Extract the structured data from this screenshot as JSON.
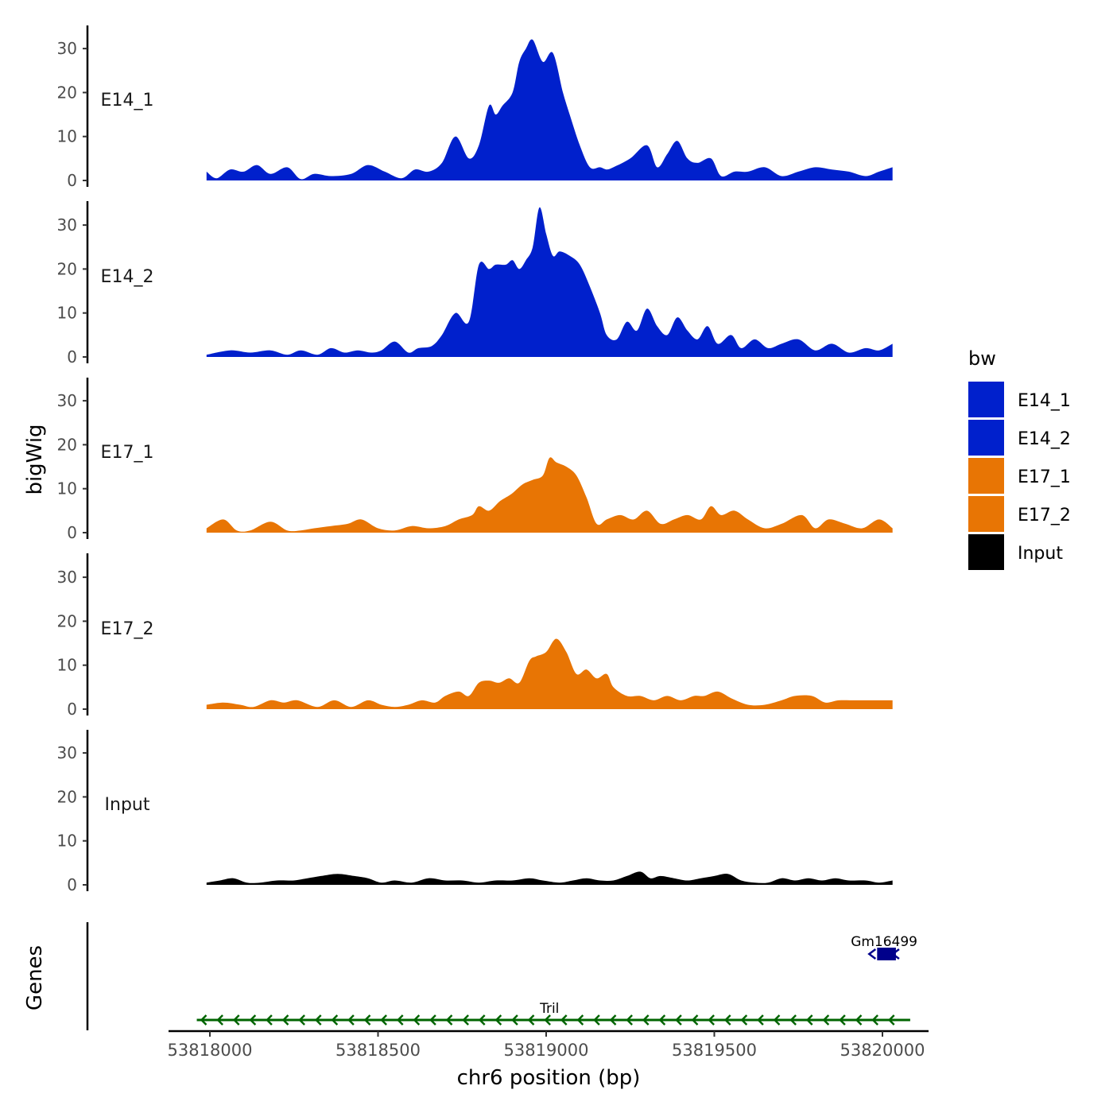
{
  "chart_data": {
    "type": "area",
    "title": "",
    "xlabel": "chr6 position (bp)",
    "ylabel": "bigWig",
    "genes_label": "Genes",
    "xlim": [
      53817880,
      53820150
    ],
    "ylim": [
      0,
      35
    ],
    "x_ticks": [
      53818000,
      53818500,
      53819000,
      53819500,
      53820000
    ],
    "y_ticks": [
      0,
      10,
      20,
      30
    ],
    "legend": {
      "title": "bw",
      "position": "right",
      "entries": [
        {
          "name": "E14_1",
          "color": "#0020CC"
        },
        {
          "name": "E14_2",
          "color": "#0020CC"
        },
        {
          "name": "E17_1",
          "color": "#E87504"
        },
        {
          "name": "E17_2",
          "color": "#E87504"
        },
        {
          "name": "Input",
          "color": "#000000"
        }
      ]
    },
    "series": [
      {
        "name": "E14_1",
        "color": "#0020CC",
        "x": [
          53817990,
          53818020,
          53818060,
          53818100,
          53818140,
          53818180,
          53818230,
          53818270,
          53818310,
          53818360,
          53818420,
          53818470,
          53818520,
          53818570,
          53818610,
          53818650,
          53818690,
          53818730,
          53818770,
          53818800,
          53818830,
          53818850,
          53818870,
          53818900,
          53818920,
          53818940,
          53818960,
          53818990,
          53819020,
          53819050,
          53819070,
          53819100,
          53819130,
          53819160,
          53819180,
          53819200,
          53819250,
          53819300,
          53819330,
          53819360,
          53819390,
          53819420,
          53819450,
          53819490,
          53819520,
          53819560,
          53819600,
          53819650,
          53819700,
          53819750,
          53819800,
          53819850,
          53819900,
          53819950,
          53819990,
          53820030
        ],
        "y": [
          2,
          0.5,
          2.5,
          2,
          3.5,
          1.5,
          3,
          0.3,
          1.5,
          1,
          1.5,
          3.5,
          2,
          0.5,
          2.5,
          2,
          4,
          10,
          5,
          8,
          17,
          15,
          17,
          20,
          27,
          30,
          32,
          27,
          29,
          20,
          15,
          8,
          3,
          3,
          2.5,
          3,
          5,
          8,
          3,
          6,
          9,
          5,
          4,
          5,
          1,
          2,
          2,
          3,
          1,
          2,
          3,
          2.5,
          2,
          1,
          2,
          3
        ]
      },
      {
        "name": "E14_2",
        "color": "#0020CC",
        "x": [
          53817990,
          53818060,
          53818120,
          53818180,
          53818230,
          53818270,
          53818320,
          53818360,
          53818400,
          53818440,
          53818480,
          53818510,
          53818550,
          53818590,
          53818620,
          53818660,
          53818690,
          53818730,
          53818770,
          53818800,
          53818830,
          53818850,
          53818880,
          53818900,
          53818920,
          53818940,
          53818960,
          53818980,
          53819000,
          53819020,
          53819040,
          53819070,
          53819100,
          53819130,
          53819160,
          53819180,
          53819210,
          53819240,
          53819270,
          53819300,
          53819330,
          53819360,
          53819390,
          53819420,
          53819450,
          53819480,
          53819510,
          53819550,
          53819580,
          53819620,
          53819660,
          53819700,
          53819750,
          53819800,
          53819850,
          53819900,
          53819950,
          53819990,
          53820030
        ],
        "y": [
          0.5,
          1.5,
          1,
          1.5,
          0.5,
          1.5,
          0.5,
          2,
          1,
          1.5,
          1,
          1.5,
          3.5,
          1,
          2,
          2.5,
          5,
          10,
          8,
          21,
          20,
          21,
          21,
          22,
          20,
          22,
          25,
          34,
          28,
          23,
          24,
          23,
          21,
          16,
          10,
          5,
          4,
          8,
          6,
          11,
          7,
          5,
          9,
          6,
          4,
          7,
          3,
          5,
          2,
          4,
          2,
          3,
          4,
          1.5,
          3,
          1,
          2,
          1.5,
          3
        ]
      },
      {
        "name": "E17_1",
        "color": "#E87504",
        "x": [
          53817990,
          53818040,
          53818080,
          53818120,
          53818180,
          53818230,
          53818270,
          53818310,
          53818360,
          53818410,
          53818450,
          53818500,
          53818550,
          53818600,
          53818650,
          53818700,
          53818740,
          53818780,
          53818800,
          53818830,
          53818860,
          53818880,
          53818900,
          53818930,
          53818960,
          53818990,
          53819010,
          53819030,
          53819060,
          53819090,
          53819120,
          53819150,
          53819180,
          53819220,
          53819260,
          53819300,
          53819340,
          53819380,
          53819420,
          53819460,
          53819490,
          53819520,
          53819560,
          53819600,
          53819650,
          53819700,
          53819760,
          53819800,
          53819840,
          53819890,
          53819940,
          53819990,
          53820030
        ],
        "y": [
          1,
          3,
          0.5,
          0.5,
          2.5,
          0.5,
          0.5,
          1,
          1.5,
          2,
          3,
          1,
          0.5,
          1.5,
          1,
          1.5,
          3,
          4,
          6,
          5,
          7,
          8,
          9,
          11,
          12,
          13,
          17,
          16,
          15,
          13,
          8,
          2,
          3,
          4,
          3,
          5,
          2,
          3,
          4,
          3,
          6,
          4,
          5,
          3,
          1,
          2,
          4,
          1,
          3,
          2,
          1,
          3,
          1
        ]
      },
      {
        "name": "E17_2",
        "color": "#E87504",
        "x": [
          53817990,
          53818040,
          53818090,
          53818130,
          53818180,
          53818220,
          53818260,
          53818320,
          53818370,
          53818420,
          53818470,
          53818510,
          53818550,
          53818590,
          53818630,
          53818670,
          53818700,
          53818740,
          53818770,
          53818800,
          53818830,
          53818860,
          53818890,
          53818920,
          53818950,
          53818970,
          53819000,
          53819030,
          53819060,
          53819090,
          53819120,
          53819150,
          53819180,
          53819200,
          53819240,
          53819280,
          53819320,
          53819360,
          53819400,
          53819440,
          53819470,
          53819510,
          53819550,
          53819600,
          53819650,
          53819700,
          53819740,
          53819790,
          53819830,
          53819870,
          53819920,
          53819970,
          53820030
        ],
        "y": [
          1,
          1.5,
          1,
          0.5,
          2,
          1.5,
          2,
          0.5,
          2,
          0.5,
          2,
          1,
          0.5,
          1,
          2,
          1.5,
          3,
          4,
          3,
          6,
          6.5,
          6,
          7,
          6,
          11,
          12,
          13,
          16,
          13,
          8,
          9,
          7,
          8,
          5,
          3,
          3,
          2,
          3,
          2,
          3,
          3,
          4,
          2.5,
          1,
          1,
          2,
          3,
          3,
          1.5,
          2,
          2,
          2,
          2
        ]
      },
      {
        "name": "Input",
        "color": "#000000",
        "x": [
          53817990,
          53818030,
          53818070,
          53818110,
          53818150,
          53818200,
          53818250,
          53818290,
          53818330,
          53818380,
          53818430,
          53818470,
          53818510,
          53818550,
          53818600,
          53818650,
          53818700,
          53818750,
          53818800,
          53818850,
          53818900,
          53818950,
          53818990,
          53819040,
          53819080,
          53819120,
          53819160,
          53819200,
          53819240,
          53819280,
          53819310,
          53819340,
          53819380,
          53819420,
          53819460,
          53819500,
          53819540,
          53819580,
          53819620,
          53819660,
          53819700,
          53819740,
          53819780,
          53819820,
          53819860,
          53819900,
          53819950,
          53819990,
          53820030
        ],
        "y": [
          0.5,
          1,
          1.5,
          0.5,
          0.5,
          1,
          1,
          1.5,
          2,
          2.5,
          2,
          1.5,
          0.5,
          1,
          0.5,
          1.5,
          1,
          1,
          0.5,
          1,
          1,
          1.5,
          1,
          0.5,
          1,
          1.5,
          1,
          1,
          2,
          3,
          1.5,
          2,
          1.5,
          1,
          1.5,
          2,
          2.5,
          1,
          0.5,
          0.5,
          1.5,
          1,
          1.5,
          1,
          1.5,
          1,
          1,
          0.5,
          1
        ]
      }
    ],
    "genes": [
      {
        "name": "Gm16499",
        "start": 53819970,
        "end": 53820040,
        "color": "#00008B",
        "strand": "-"
      },
      {
        "name": "Tril",
        "start": 53817980,
        "end": 53820040,
        "color": "#006400",
        "strand": "-"
      }
    ]
  }
}
